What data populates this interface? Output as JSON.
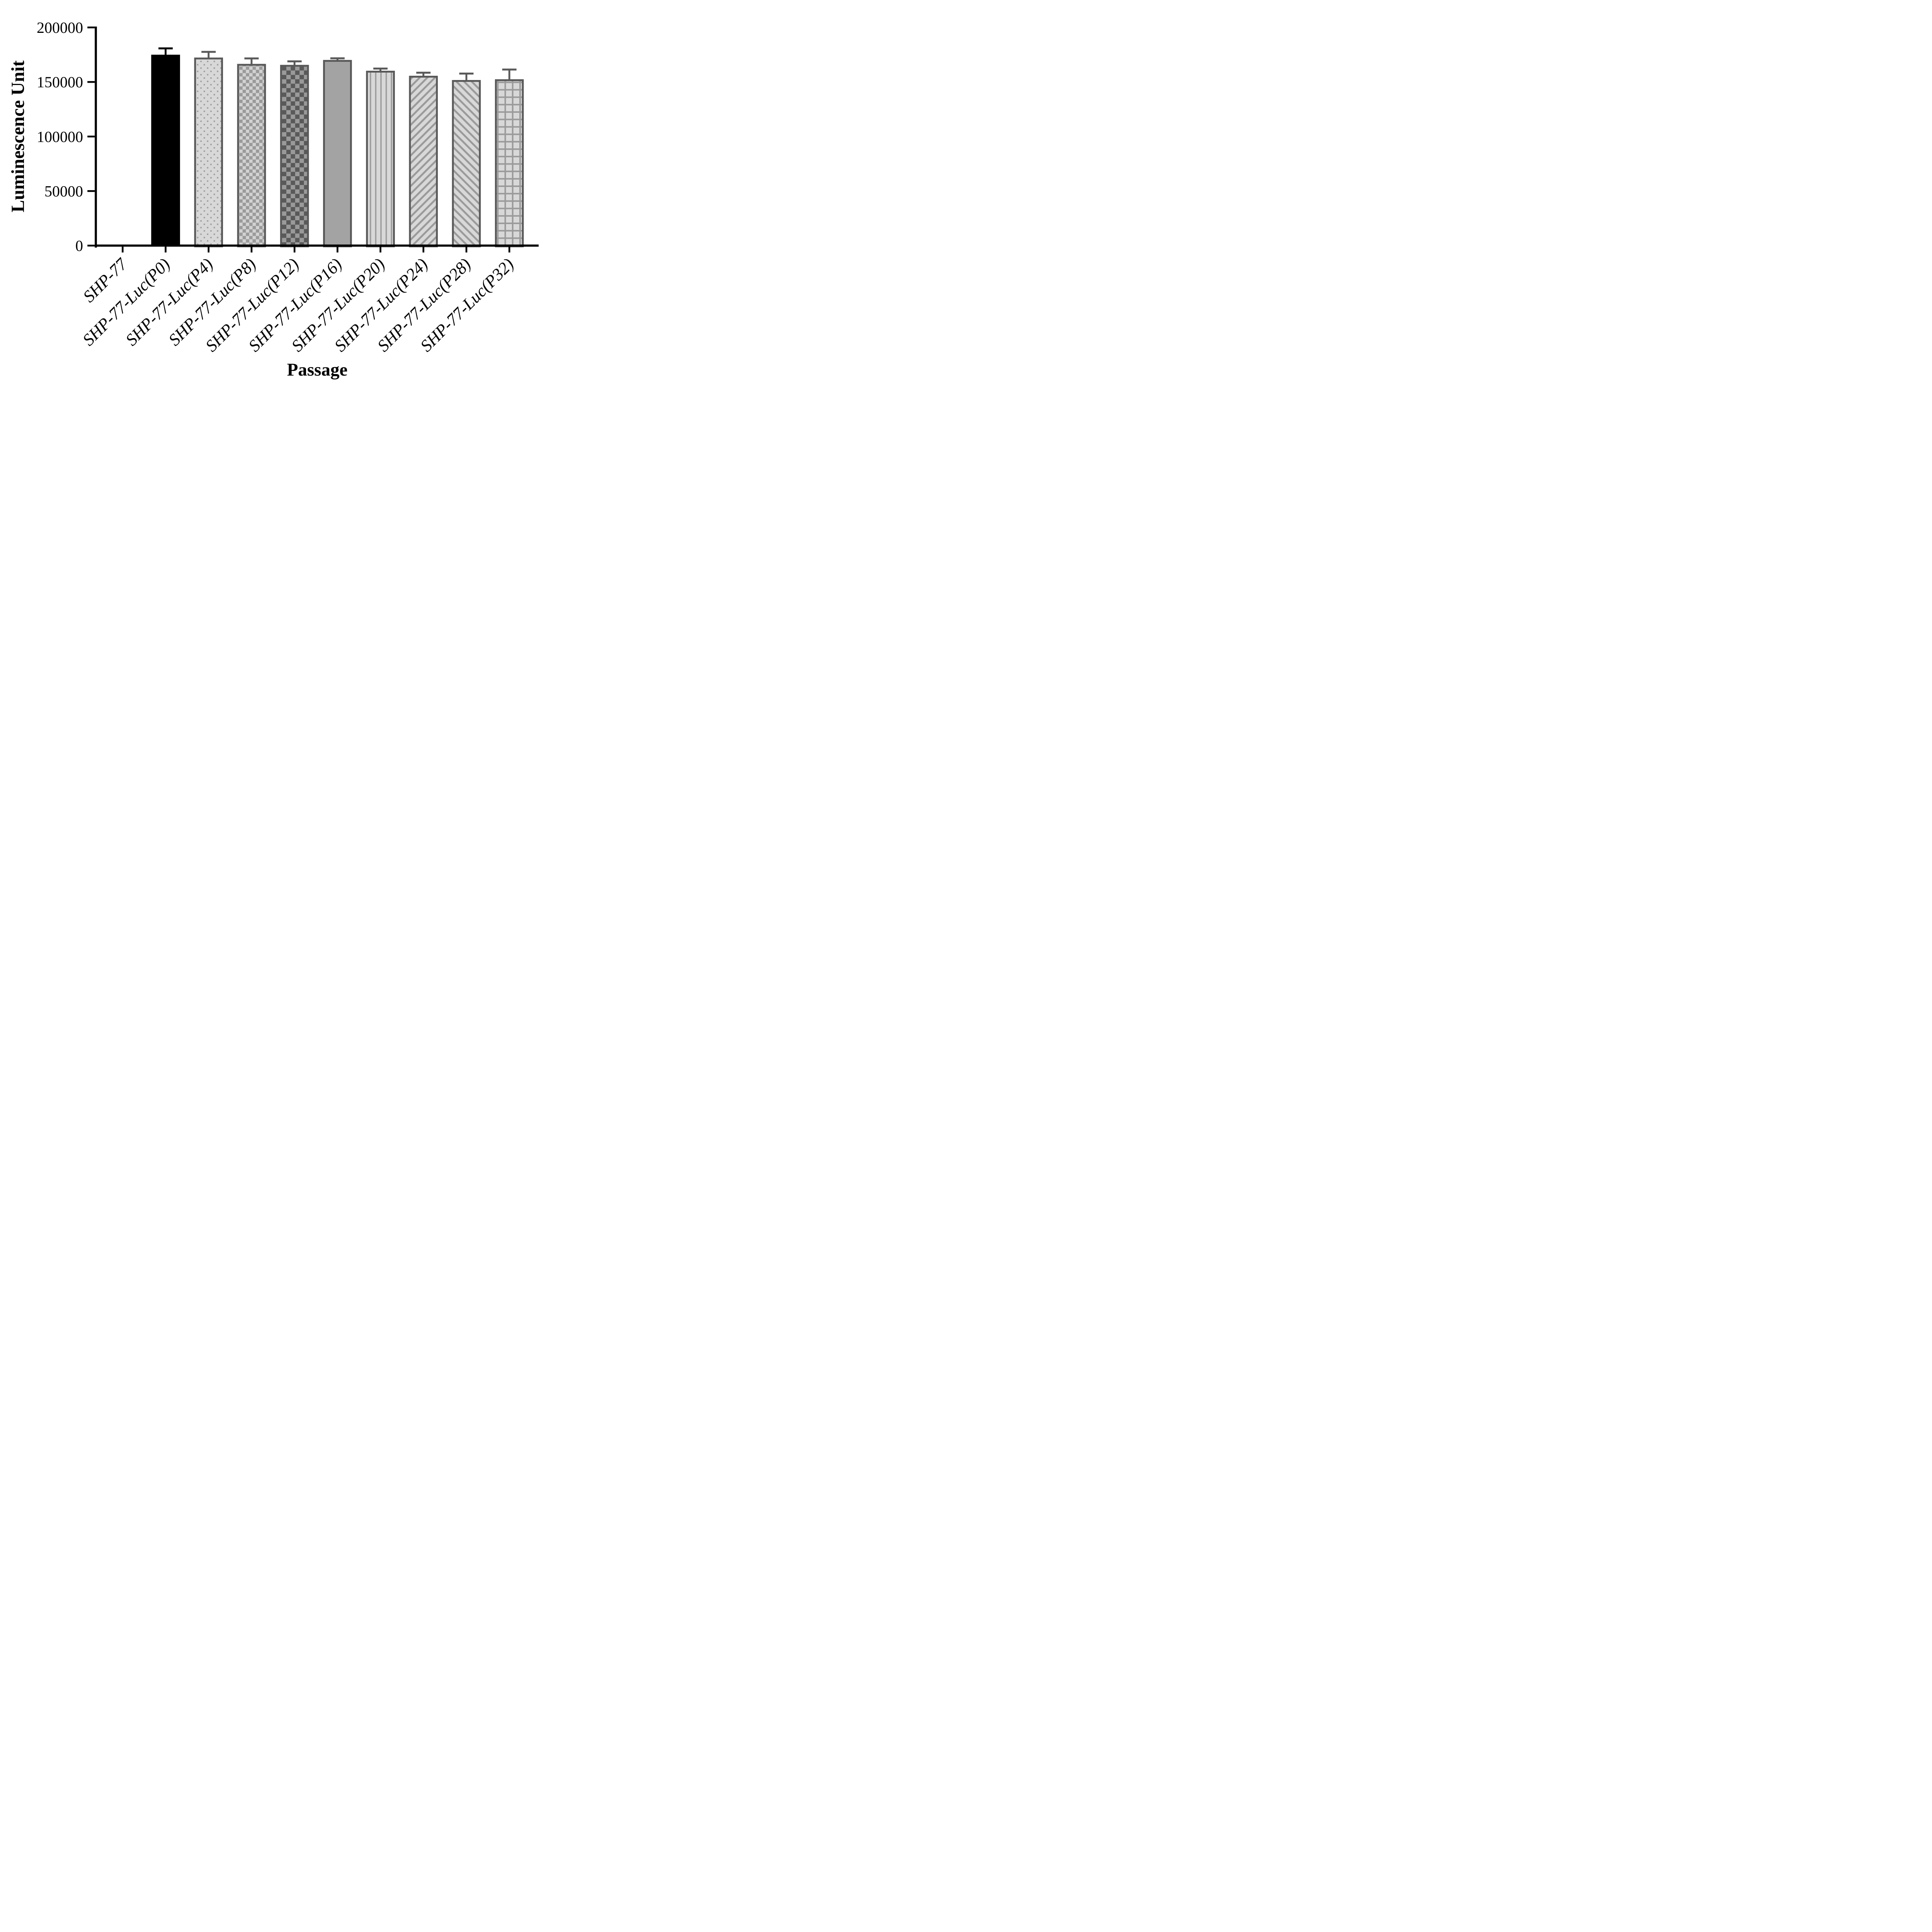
{
  "chart_data": {
    "type": "bar",
    "title": "",
    "xlabel": "Passage",
    "ylabel": "Luminescence Unit",
    "categories": [
      "SHP-77",
      "SHP-77-Luc(P0)",
      "SHP-77-Luc(P4)",
      "SHP-77-Luc(P8)",
      "SHP-77-Luc(P12)",
      "SHP-77-Luc(P16)",
      "SHP-77-Luc(P20)",
      "SHP-77-Luc(P24)",
      "SHP-77-Luc(P28)",
      "SHP-77-Luc(P32)"
    ],
    "values": [
      0,
      175000,
      172400,
      166600,
      165700,
      170200,
      160300,
      155700,
      151800,
      152500
    ],
    "errors_sd_upper": [
      0,
      5800,
      5200,
      5000,
      3200,
      1500,
      2000,
      2800,
      5900,
      8900
    ],
    "ylim": [
      0,
      200000
    ],
    "yticks": [
      0,
      50000,
      100000,
      150000,
      200000
    ],
    "ytick_labels": [
      "0",
      "50000",
      "100000",
      "150000",
      "200000"
    ],
    "grid": "off",
    "legend": "none",
    "error_bar_style": "upper-only with T caps",
    "bar_patterns": [
      "none",
      "solid-black",
      "dots",
      "checker-fine",
      "checker-coarse",
      "solid-gray",
      "vertical-stripes",
      "diagonal-up",
      "diagonal-down",
      "grid"
    ],
    "colors": {
      "axis_black": "#000000",
      "dark_gray_border": "#595959",
      "mid_gray_pattern": "#9a9a9a",
      "light_gray_fill": "#d8d8d8",
      "checker_light_fill": "#d2d2d2",
      "solid_gray_fill": "#a3a3a3",
      "background": "#ffffff"
    }
  }
}
